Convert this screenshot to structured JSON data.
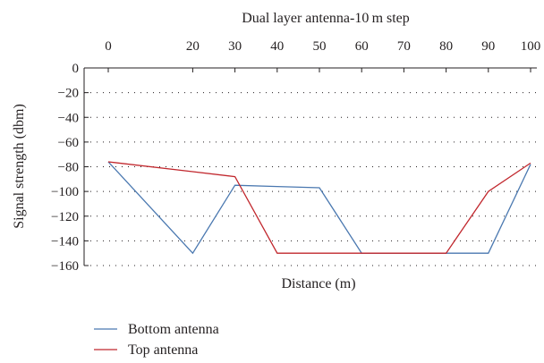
{
  "chart_data": {
    "type": "line",
    "title": "Dual layer antenna-10 m step",
    "xlabel": "Distance (m)",
    "ylabel": "Signal strength (dbm)",
    "x": [
      0,
      20,
      30,
      40,
      50,
      60,
      70,
      80,
      90,
      100
    ],
    "x_ticks": [
      "0",
      "20",
      "30",
      "40",
      "50",
      "60",
      "70",
      "80",
      "90",
      "100"
    ],
    "y_ticks": [
      "0",
      "−20",
      "−40",
      "−60",
      "−80",
      "−100",
      "−120",
      "−140",
      "−160"
    ],
    "ylim": [
      -160,
      0
    ],
    "x_axis_position": "top",
    "grid": "horizontal-dotted",
    "legend_position": "bottom-left",
    "series": [
      {
        "name": "Bottom antenna",
        "color": "#4a78b0",
        "values": [
          -76,
          -150,
          -95,
          -96,
          -97,
          -150,
          -150,
          -150,
          -150,
          -78
        ]
      },
      {
        "name": "Top antenna",
        "color": "#c1272d",
        "values": [
          -76,
          -84,
          -88,
          -150,
          -150,
          -150,
          -150,
          -150,
          -100,
          -77
        ]
      }
    ]
  }
}
